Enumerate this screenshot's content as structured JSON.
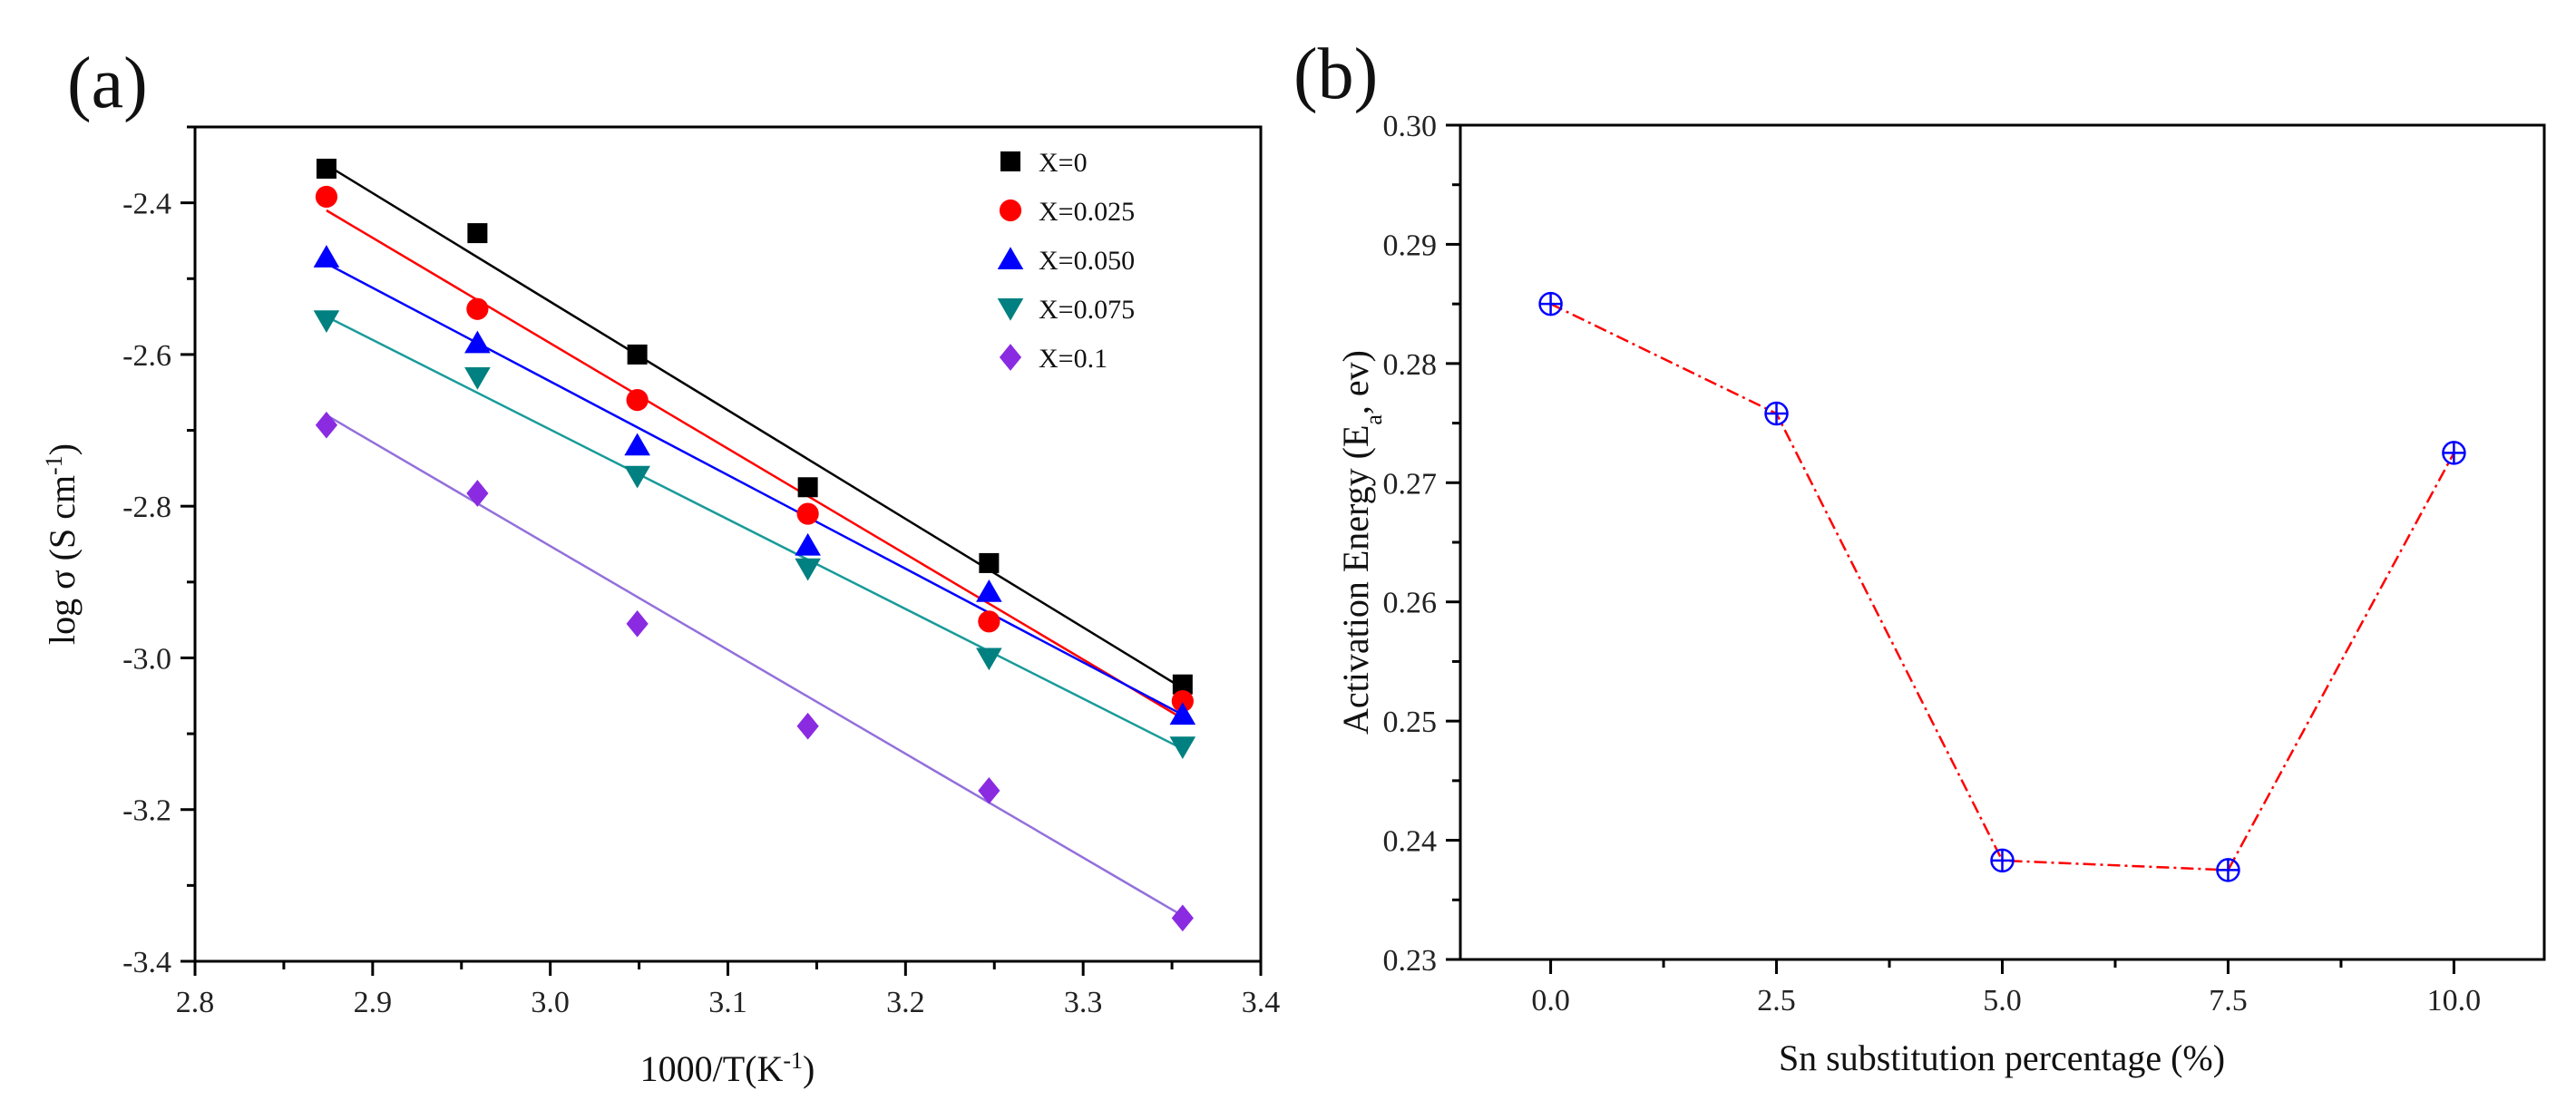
{
  "chart_data": [
    {
      "type": "scatter",
      "panel_label": "(a)",
      "title": "",
      "xlabel": "1000/T(K",
      "xlabel_sup": "-1",
      "xlabel_end": ")",
      "ylabel": "log σ (S cm",
      "ylabel_sup": "-1",
      "ylabel_end": ")",
      "xlim": [
        2.8,
        3.4
      ],
      "ylim": [
        -3.4,
        -2.3
      ],
      "xticks": [
        "2.8",
        "2.9",
        "3.0",
        "3.1",
        "3.2",
        "3.3",
        "3.4"
      ],
      "yticks": [
        "-2.4",
        "-2.6",
        "-2.8",
        "-3.0",
        "-3.2",
        "-3.4"
      ],
      "x": [
        2.874,
        2.959,
        3.049,
        3.145,
        3.247,
        3.356
      ],
      "legend_position": "top-right",
      "series": [
        {
          "name": "X=0",
          "marker": "square",
          "color": "#000000",
          "line_color": "#000000",
          "values": [
            -2.355,
            -2.44,
            -2.6,
            -2.775,
            -2.875,
            -3.035
          ],
          "fit": [
            -2.35,
            -3.04
          ]
        },
        {
          "name": "X=0.025",
          "marker": "circle",
          "color": "#ff0000",
          "line_color": "#ff0000",
          "values": [
            -2.392,
            -2.54,
            -2.66,
            -2.81,
            -2.952,
            -3.057
          ],
          "fit": [
            -2.41,
            -3.08
          ]
        },
        {
          "name": "X=0.050",
          "marker": "triangle",
          "color": "#0000ff",
          "line_color": "#0000ff",
          "values": [
            -2.472,
            -2.585,
            -2.72,
            -2.852,
            -2.913,
            -3.075
          ],
          "fit": [
            -2.48,
            -3.075
          ]
        },
        {
          "name": "X=0.075",
          "marker": "triangle-down",
          "color": "#008080",
          "line_color": "#1a9a9a",
          "values": [
            -2.555,
            -2.63,
            -2.76,
            -2.882,
            -3.0,
            -3.117
          ],
          "fit": [
            -2.55,
            -3.12
          ]
        },
        {
          "name": "X=0.1",
          "marker": "diamond",
          "color": "#8a2be2",
          "line_color": "#9370db",
          "values": [
            -2.693,
            -2.783,
            -2.955,
            -3.09,
            -3.175,
            -3.343
          ],
          "fit": [
            -2.68,
            -3.34
          ]
        }
      ]
    },
    {
      "type": "line",
      "panel_label": "(b)",
      "title": "",
      "xlabel": "Sn substitution percentage (%)",
      "ylabel": "Activation Energy (E",
      "ylabel_sub": "a",
      "ylabel_end": ", ev)",
      "xlim": [
        -1.0,
        11.0
      ],
      "ylim": [
        0.23,
        0.3
      ],
      "xticks": [
        "0.0",
        "2.5",
        "5.0",
        "7.5",
        "10.0"
      ],
      "xtick_values": [
        0.0,
        2.5,
        5.0,
        7.5,
        10.0
      ],
      "yticks": [
        "0.23",
        "0.24",
        "0.25",
        "0.26",
        "0.27",
        "0.28",
        "0.29",
        "0.30"
      ],
      "series": [
        {
          "name": "Ea",
          "marker": "circle-plus",
          "marker_color": "#0000ff",
          "line_color": "#ff0000",
          "x": [
            0.0,
            2.5,
            5.0,
            7.5,
            10.0
          ],
          "values": [
            0.285,
            0.2758,
            0.2383,
            0.2375,
            0.2725
          ]
        }
      ]
    }
  ]
}
